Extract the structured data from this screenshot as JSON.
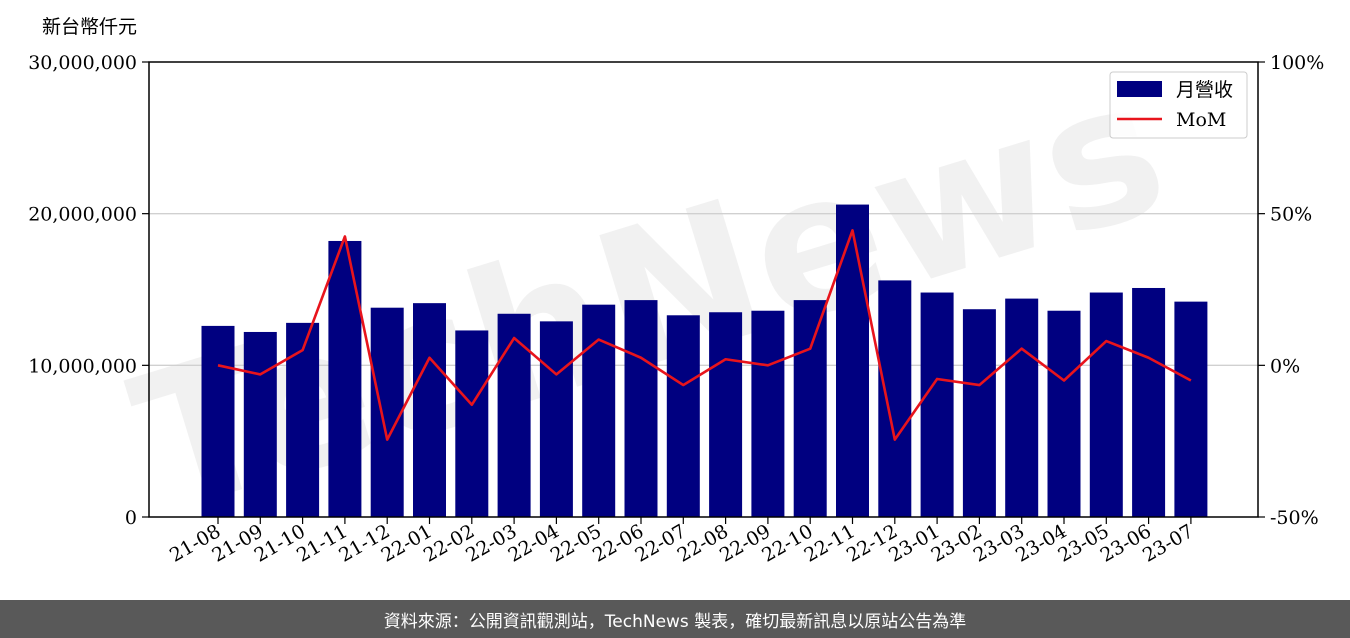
{
  "chart_data": {
    "type": "bar",
    "unit_label": "新台幣仟元",
    "categories": [
      "21-08",
      "21-09",
      "21-10",
      "21-11",
      "21-12",
      "22-01",
      "22-02",
      "22-03",
      "22-04",
      "22-05",
      "22-06",
      "22-07",
      "22-08",
      "22-09",
      "22-10",
      "22-11",
      "22-12",
      "23-01",
      "23-02",
      "23-03",
      "23-04",
      "23-05",
      "23-06",
      "23-07"
    ],
    "series": [
      {
        "name": "月營收",
        "type": "bar",
        "axis": "left",
        "color": "#000080",
        "values": [
          12600000,
          12200000,
          12800000,
          18200000,
          13800000,
          14100000,
          12300000,
          13400000,
          12900000,
          14000000,
          14300000,
          13300000,
          13500000,
          13600000,
          14300000,
          20600000,
          15600000,
          14800000,
          13700000,
          14400000,
          13600000,
          14800000,
          15100000,
          14200000
        ]
      },
      {
        "name": "MoM",
        "type": "line",
        "axis": "right",
        "color": "#e8141c",
        "values": [
          0.0,
          -3.0,
          5.0,
          42.5,
          -24.5,
          2.5,
          -13.0,
          9.0,
          -3.0,
          8.5,
          2.5,
          -6.5,
          2.0,
          0.0,
          5.5,
          44.5,
          -24.5,
          -4.5,
          -6.5,
          5.5,
          -5.0,
          8.0,
          2.5,
          -5.0
        ]
      }
    ],
    "y_left": {
      "min": 0,
      "max": 30000000,
      "ticks": [
        "0",
        "10,000,000",
        "20,000,000",
        "30,000,000"
      ],
      "tick_values": [
        0,
        10000000,
        20000000,
        30000000
      ]
    },
    "y_right": {
      "min": -50,
      "max": 100,
      "ticks": [
        "-50%",
        "0%",
        "50%",
        "100%"
      ],
      "tick_values": [
        -50,
        0,
        50,
        100
      ]
    },
    "grid": "horizontal",
    "legend_position": "top-right",
    "watermark": "TechNews"
  },
  "footer": {
    "text": "資料來源：公開資訊觀測站，TechNews 製表，確切最新訊息以原站公告為準"
  }
}
